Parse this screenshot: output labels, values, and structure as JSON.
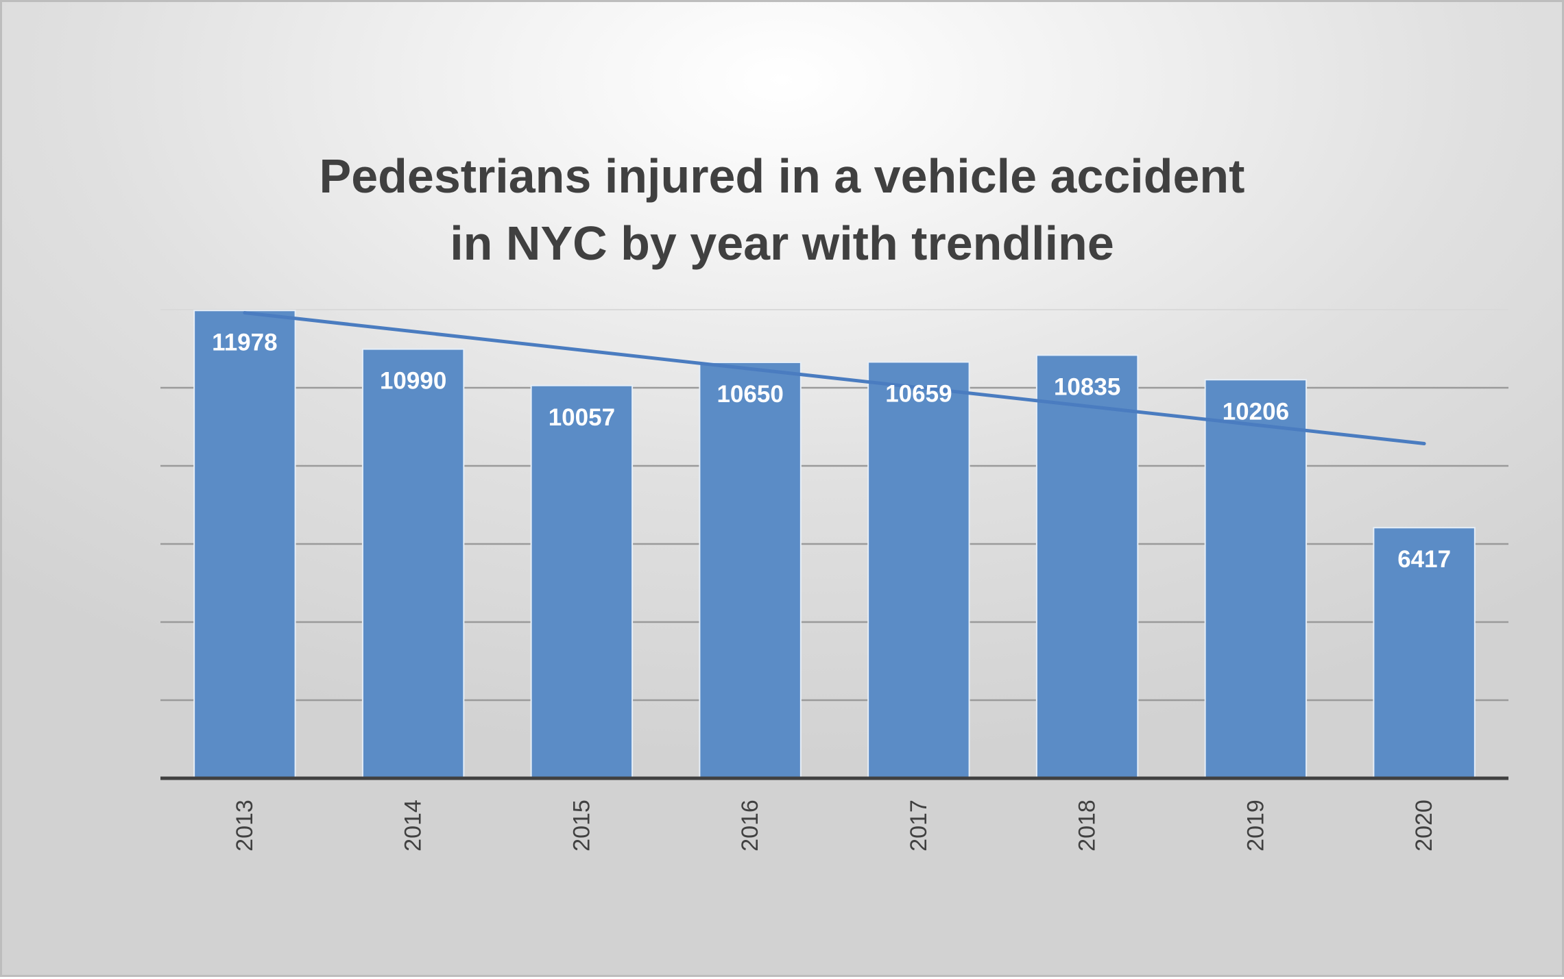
{
  "chart_data": {
    "type": "bar",
    "title": "Pedestrians injured in a vehicle accident\nin NYC by year with trendline",
    "categories": [
      "2013",
      "2014",
      "2015",
      "2016",
      "2017",
      "2018",
      "2019",
      "2020"
    ],
    "values": [
      11978,
      10990,
      10057,
      10650,
      10659,
      10835,
      10206,
      6417
    ],
    "data_labels": [
      "11978",
      "10990",
      "10057",
      "10650",
      "10659",
      "10835",
      "10206",
      "6417"
    ],
    "ylim": [
      0,
      12000
    ],
    "y_gridline_step": 2000,
    "y_tick_labels_visible": false,
    "trendline": {
      "type": "linear",
      "start": 11920,
      "end": 8570
    },
    "grid": true,
    "legend": "none",
    "colors": {
      "bar": "#5b8cc6",
      "bar_edge": "#e6eef7",
      "trendline": "#4a7cc0",
      "gridline": "#9a9a9a",
      "axis": "#404040",
      "title": "#404040"
    }
  }
}
